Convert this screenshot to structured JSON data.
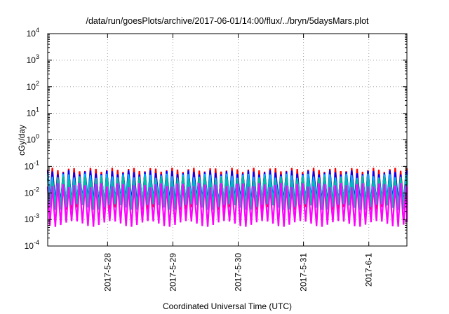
{
  "chart_data": {
    "type": "line",
    "title": "/data/run/goesPlots/archive/2017-06-01/14:00/flux/../bryn/5daysMars.plot",
    "xlabel": "Coordinated Universal Time (UTC)",
    "ylabel": "cGy/day",
    "x_domain": [
      "2017-05-27T02:00",
      "2017-06-01T14:00"
    ],
    "x_ticks": [
      {
        "label": "2017-5-28",
        "value": "2017-05-28T00:00"
      },
      {
        "label": "2017-5-29",
        "value": "2017-05-29T00:00"
      },
      {
        "label": "2017-5-30",
        "value": "2017-05-30T00:00"
      },
      {
        "label": "2017-5-31",
        "value": "2017-05-31T00:00"
      },
      {
        "label": "2017-6-1",
        "value": "2017-06-01T00:00"
      }
    ],
    "y_scale": "log",
    "ylim": [
      0.0001,
      10000
    ],
    "y_ticks": [
      {
        "base": "10",
        "exp": "4",
        "value": 10000
      },
      {
        "base": "10",
        "exp": "3",
        "value": 1000
      },
      {
        "base": "10",
        "exp": "2",
        "value": 100
      },
      {
        "base": "10",
        "exp": "1",
        "value": 10
      },
      {
        "base": "10",
        "exp": "0",
        "value": 1
      },
      {
        "base": "10",
        "exp": "-1",
        "value": 0.1
      },
      {
        "base": "10",
        "exp": "-2",
        "value": 0.01
      },
      {
        "base": "10",
        "exp": "-3",
        "value": 0.001
      },
      {
        "base": "10",
        "exp": "-4",
        "value": 0.0001
      }
    ],
    "grid": true,
    "pattern": {
      "cycle_hours": 2.0,
      "series": [
        {
          "color": "#ff0000",
          "peak": 0.075,
          "trough": 0.003
        },
        {
          "color": "#0000ff",
          "peak": 0.06,
          "trough": 0.0045
        },
        {
          "color": "#00b4ff",
          "peak": 0.045,
          "trough": 0.004
        },
        {
          "color": "#00c0a0",
          "peak": 0.035,
          "trough": 0.003
        },
        {
          "color": "#ff00ff",
          "peak": 0.02,
          "trough": 0.0007
        }
      ]
    }
  }
}
